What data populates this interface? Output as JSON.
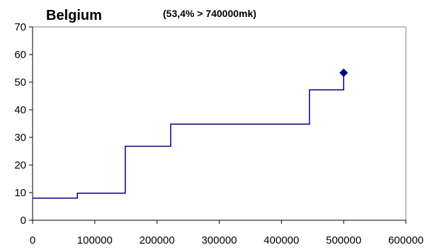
{
  "chart_data": {
    "type": "line",
    "title": "Belgium",
    "subtitle": "(53,4% > 740000mk)",
    "xlabel": "",
    "ylabel": "",
    "xlim": [
      0,
      600000
    ],
    "ylim": [
      0,
      70
    ],
    "x_ticks": [
      0,
      100000,
      200000,
      300000,
      400000,
      500000,
      600000
    ],
    "y_ticks": [
      0,
      10,
      20,
      30,
      40,
      50,
      60,
      70
    ],
    "grid": false,
    "legend": "none",
    "line_color": "#000080",
    "step_series": {
      "x": [
        0,
        72000,
        72000,
        149000,
        149000,
        222000,
        222000,
        445000,
        445000,
        500000,
        500000
      ],
      "y": [
        8,
        8,
        9.8,
        9.8,
        26.8,
        26.8,
        34.8,
        34.8,
        47.2,
        47.2,
        53.4
      ]
    },
    "marker_point": {
      "x": 500000,
      "y": 53.4,
      "shape": "diamond"
    }
  }
}
